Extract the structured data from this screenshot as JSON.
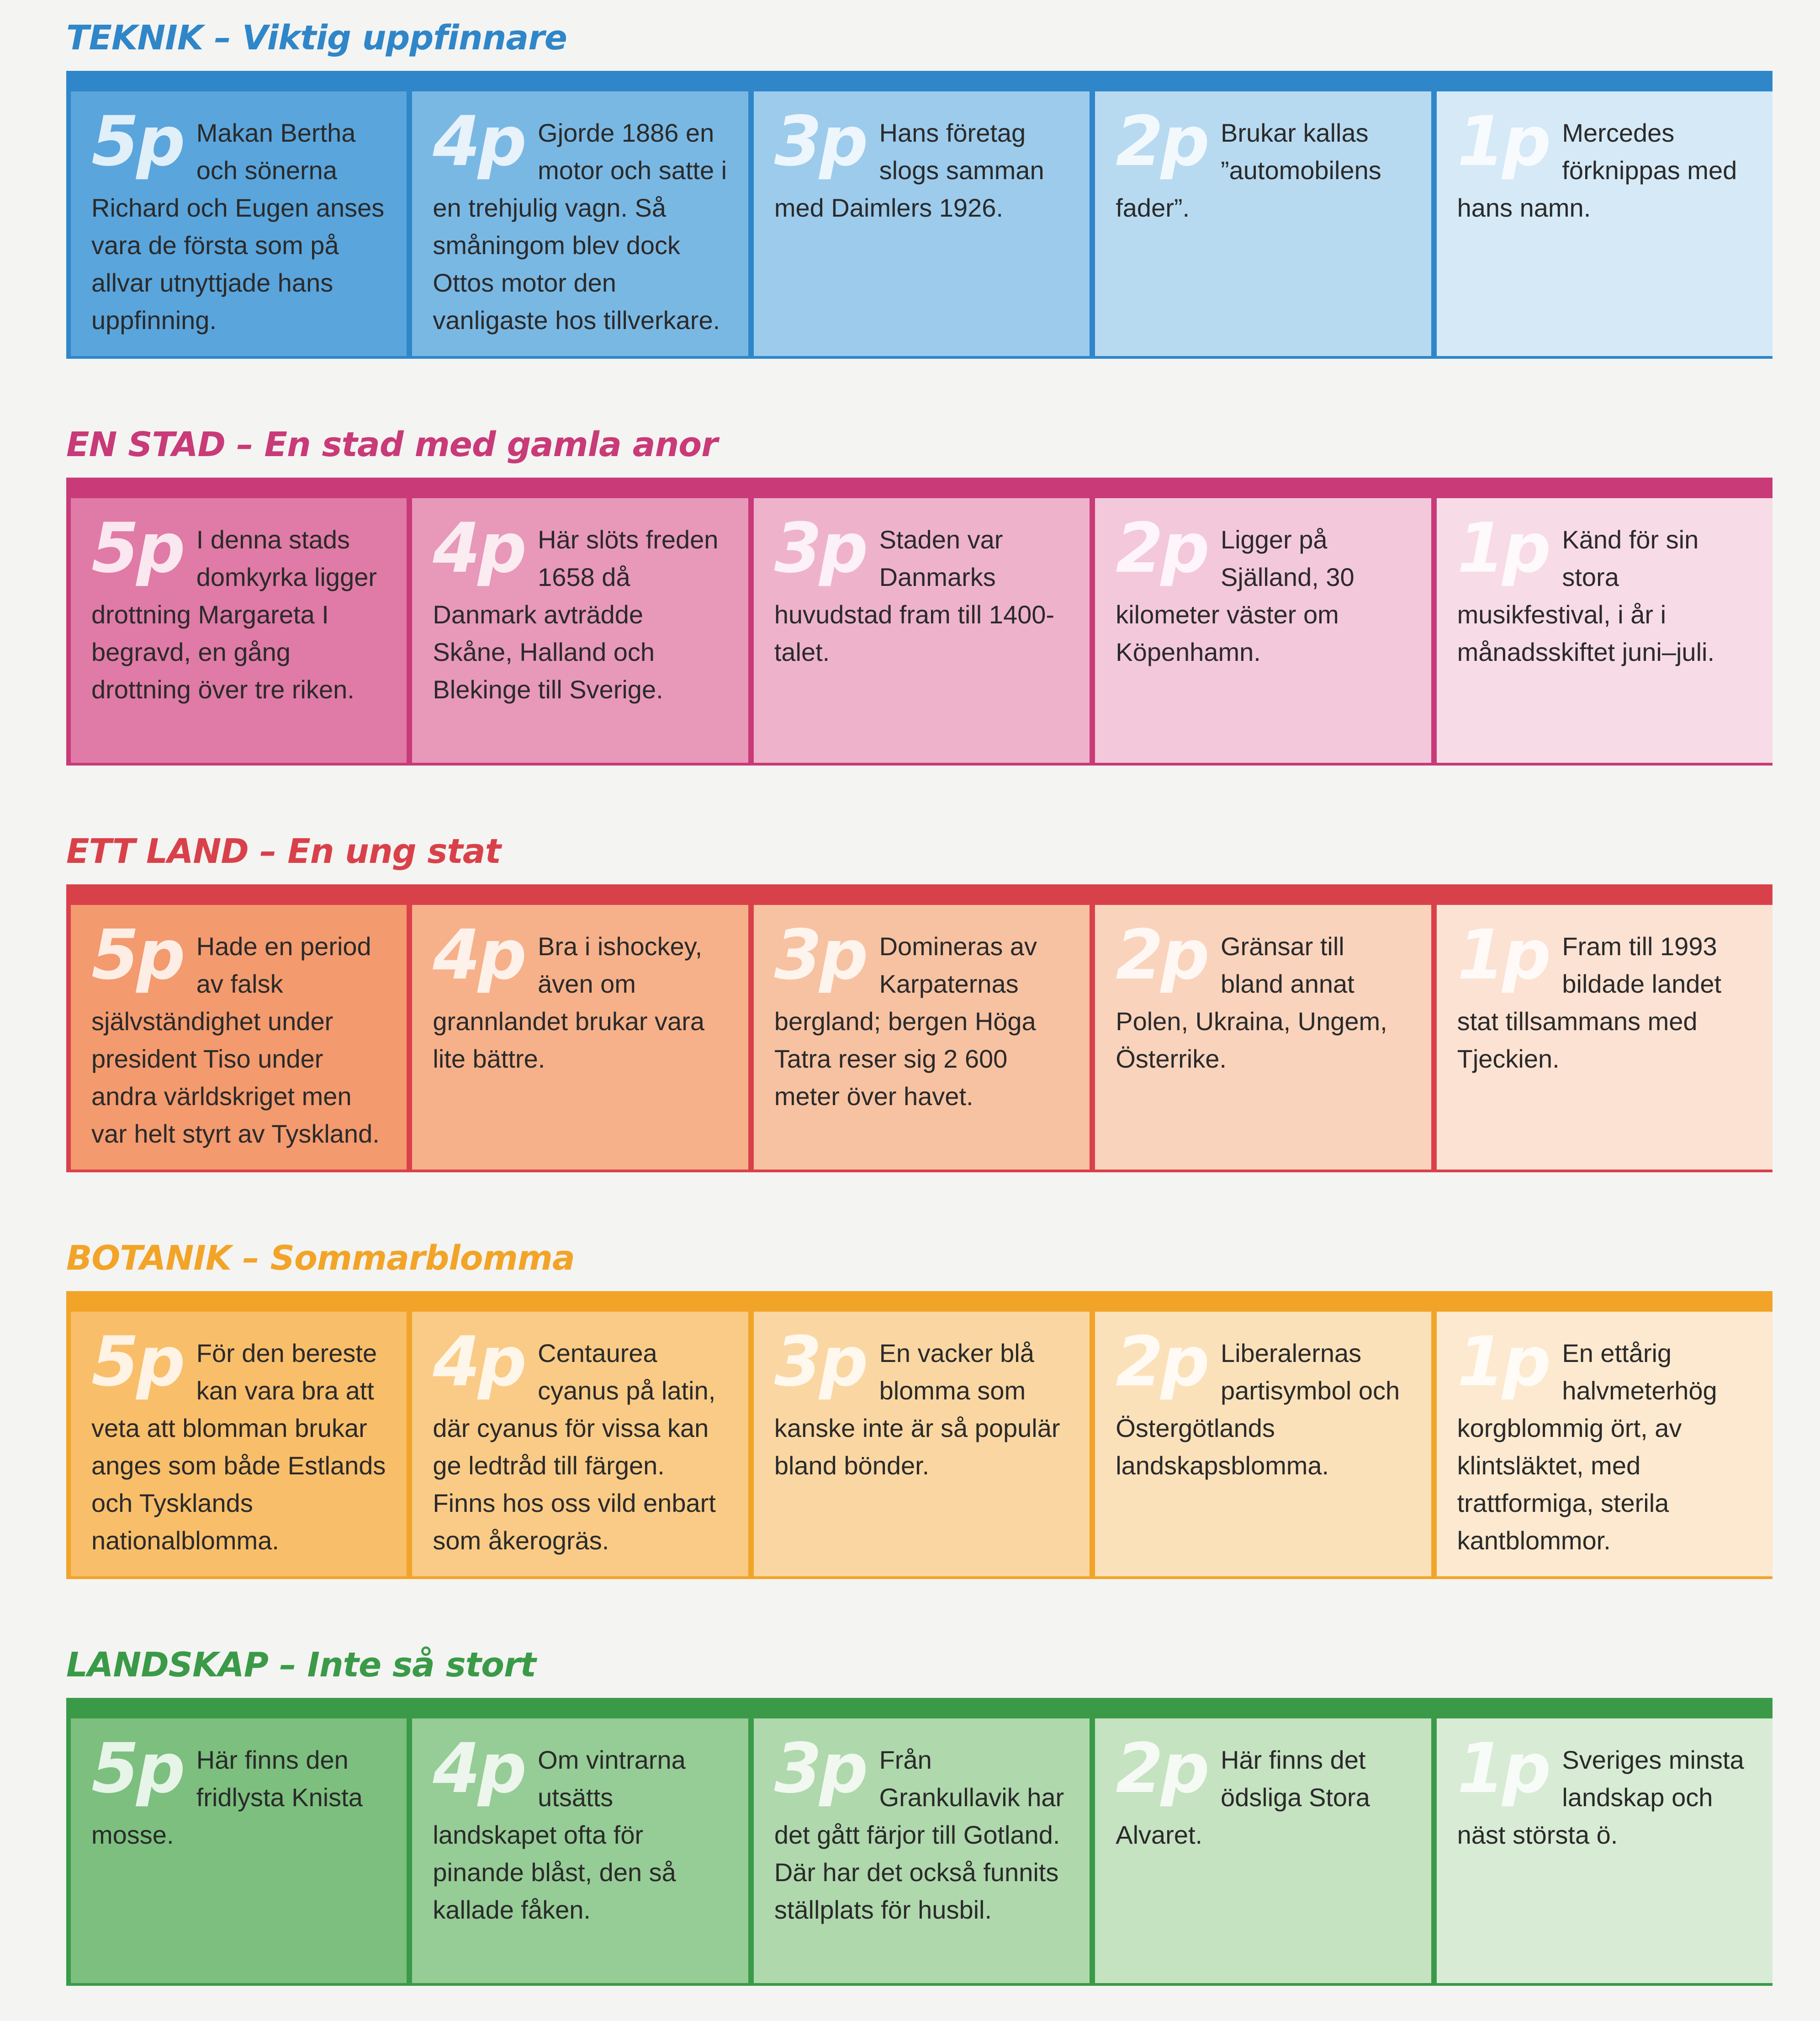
{
  "sections": [
    {
      "title": "TEKNIK – Viktig uppfinnare",
      "color": "#2f86c9",
      "cells": [
        {
          "points": "5p",
          "text": "Makan Bertha och sönerna Richard och Eugen anses vara de första som på allvar utnyttjade hans uppfinning.",
          "bg": "#5aa5dc"
        },
        {
          "points": "4p",
          "text": "Gjorde 1886 en motor och satte i en trehjulig vagn. Så småningom blev dock Ottos motor den vanligaste hos tillverkare.",
          "bg": "#7ab8e4"
        },
        {
          "points": "3p",
          "text": "Hans företag slogs samman med Daimlers 1926.",
          "bg": "#9ccbec"
        },
        {
          "points": "2p",
          "text": "Brukar kallas ”automobilens fader”.",
          "bg": "#b8daf1"
        },
        {
          "points": "1p",
          "text": "Mercedes förknippas med hans namn.",
          "bg": "#d5e9f6"
        }
      ]
    },
    {
      "title": "EN STAD – En stad med gamla anor",
      "color": "#c83a78",
      "cells": [
        {
          "points": "5p",
          "text": "I denna stads domkyrka ligger drottning Margareta I begravd, en gång drottning över tre riken.",
          "bg": "#e07aa6"
        },
        {
          "points": "4p",
          "text": "Här slöts freden 1658 då Danmark avträdde Skåne, Halland och Blekinge till Sverige.",
          "bg": "#e898b9"
        },
        {
          "points": "3p",
          "text": "Staden var Danmarks huvudstad fram till 1400-talet.",
          "bg": "#eeb3cb"
        },
        {
          "points": "2p",
          "text": "Ligger på Själland, 30 kilometer väster om Köpenhamn.",
          "bg": "#f3c8da"
        },
        {
          "points": "1p",
          "text": "Känd för sin stora musikfestival, i år i månadsskiftet juni–juli.",
          "bg": "#f7dbe6"
        }
      ]
    },
    {
      "title": "ETT LAND – En ung stat",
      "color": "#d9414a",
      "cells": [
        {
          "points": "5p",
          "text": "Hade en period av falsk självständighet under president Tiso under andra världskriget men var helt styrt av Tyskland.",
          "bg": "#f39a6e"
        },
        {
          "points": "4p",
          "text": "Bra i ishockey, även om grannlandet brukar vara lite bättre.",
          "bg": "#f6b18a"
        },
        {
          "points": "3p",
          "text": "Domineras av Karpaternas bergland; bergen Höga Tatra reser sig 2 600 meter över havet.",
          "bg": "#f7c2a2"
        },
        {
          "points": "2p",
          "text": "Gränsar till bland annat Polen, Ukraina, Ungem, Österrike.",
          "bg": "#f9d3bc"
        },
        {
          "points": "1p",
          "text": "Fram till 1993 bildade landet stat tillsammans med Tjeckien.",
          "bg": "#fbe2d3"
        }
      ]
    },
    {
      "title": "BOTANIK – Sommarblomma",
      "color": "#f2a428",
      "cells": [
        {
          "points": "5p",
          "text": "För den bereste kan vara bra att veta att blomman brukar anges som både Estlands och Tysklands nationalblomma.",
          "bg": "#f8be6a"
        },
        {
          "points": "4p",
          "text": "Centaurea cyanus på latin, där cyanus för vissa kan ge ledtråd till färgen. Finns hos oss vild enbart som åkerogräs.",
          "bg": "#f9cb86"
        },
        {
          "points": "3p",
          "text": "En vacker blå blomma som kanske inte är så populär bland bönder.",
          "bg": "#fad7a2"
        },
        {
          "points": "2p",
          "text": "Liberalernas partisymbol och Östergötlands landskapsblomma.",
          "bg": "#fbe1ba"
        },
        {
          "points": "1p",
          "text": "En ettårig halvmeterhög korgblommig ört, av klintsläktet, med trattformiga, sterila kantblommor.",
          "bg": "#fce9cf"
        }
      ]
    },
    {
      "title": "LANDSKAP – Inte så stort",
      "color": "#3a9a48",
      "cells": [
        {
          "points": "5p",
          "text": "Här finns den fridlysta Knista mosse.",
          "bg": "#7cbf7e"
        },
        {
          "points": "4p",
          "text": "Om vintrarna utsätts landskapet ofta för pinande blåst, den så kallade fåken.",
          "bg": "#96cc96"
        },
        {
          "points": "3p",
          "text": "Från Grankullavik har det gått färjor till Gotland. Där har det också funnits ställplats för husbil.",
          "bg": "#afd8ad"
        },
        {
          "points": "2p",
          "text": "Här finns det ödsliga Stora Alvaret.",
          "bg": "#c5e2c1"
        },
        {
          "points": "1p",
          "text": "Sveriges minsta landskap och näst största ö.",
          "bg": "#d8ebd5"
        }
      ]
    }
  ]
}
